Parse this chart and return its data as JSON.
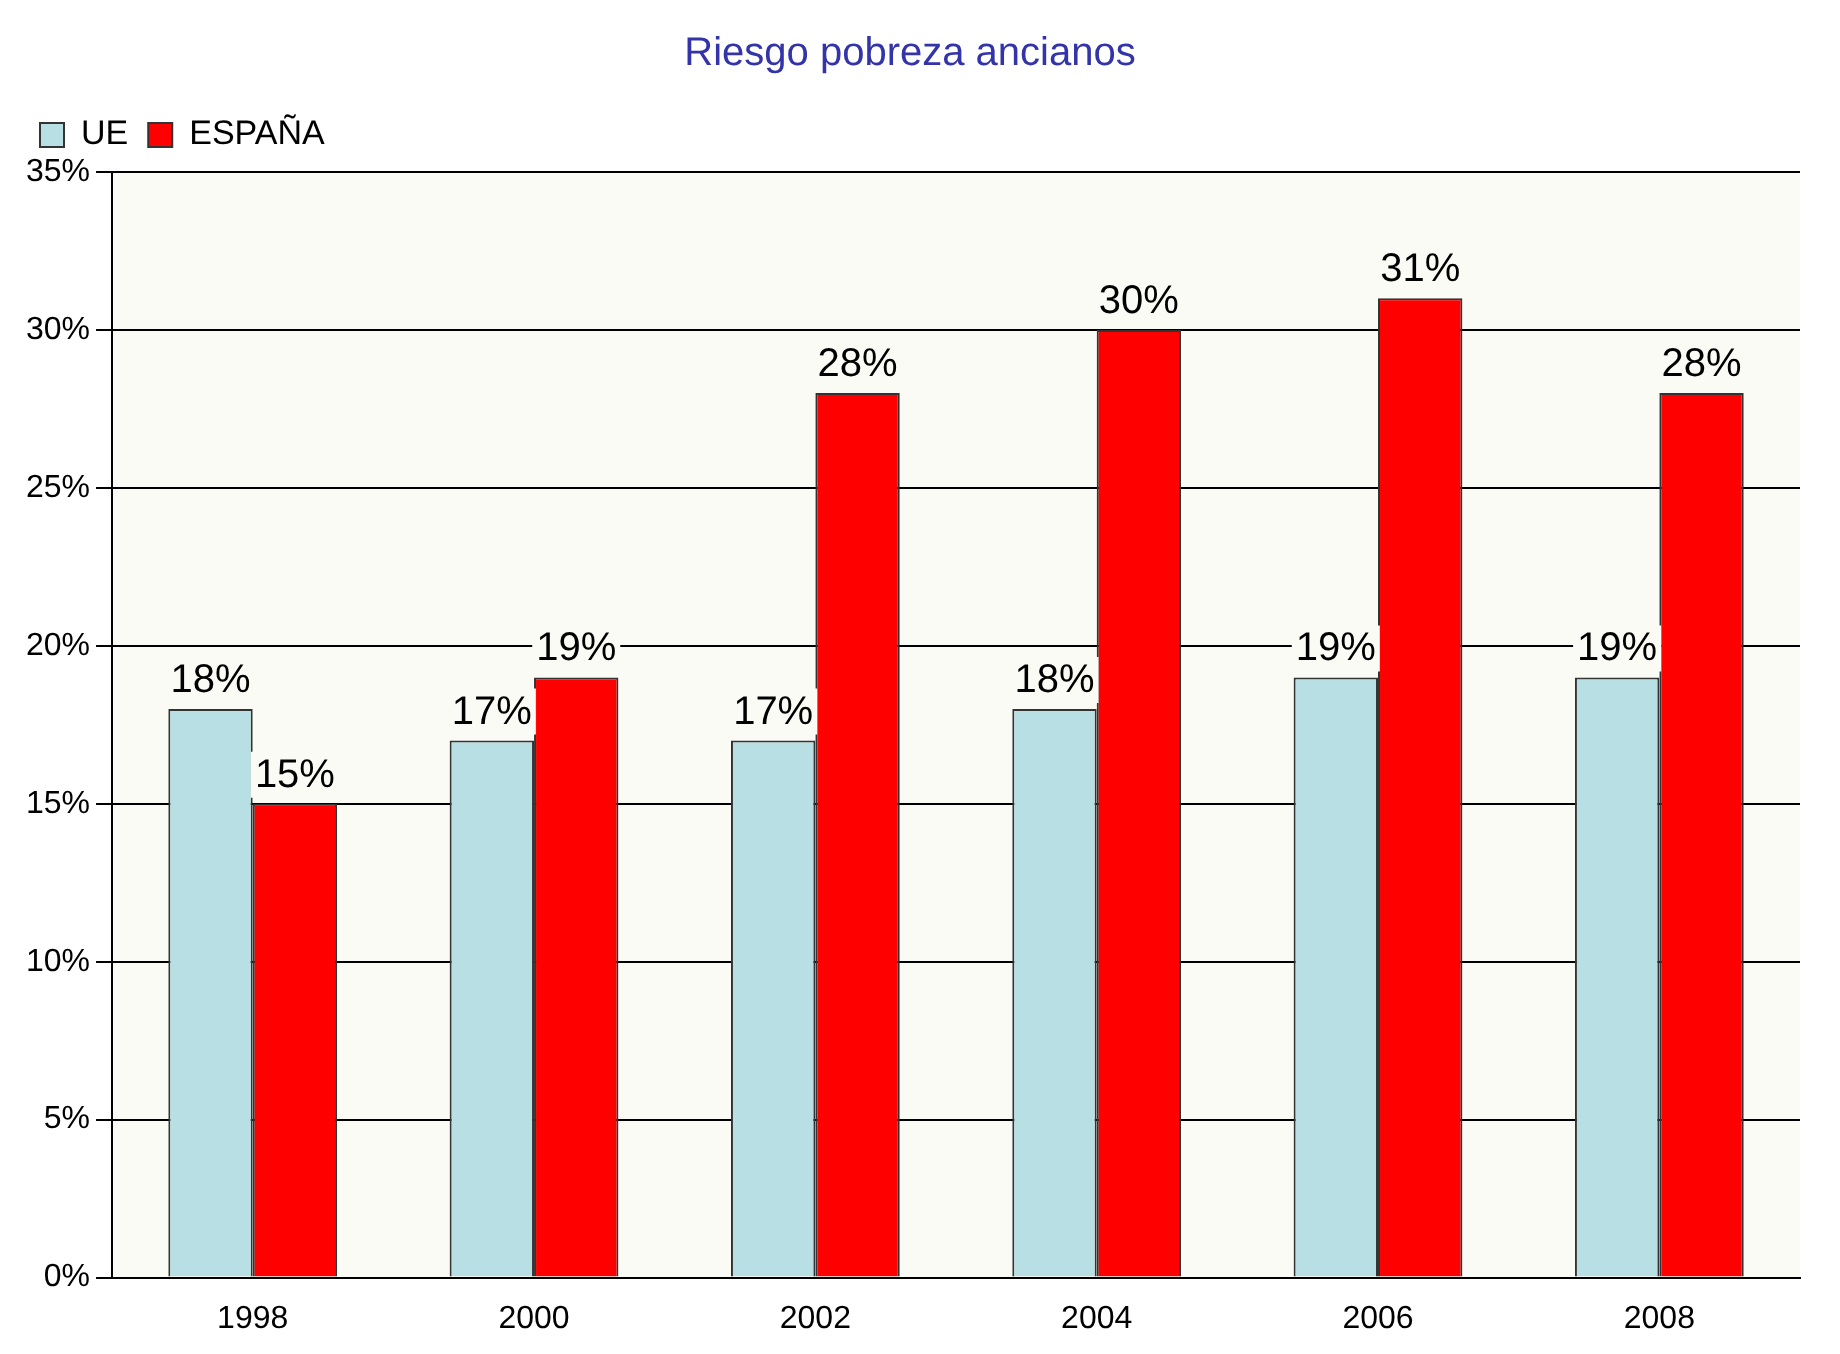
{
  "chart_data": {
    "type": "bar",
    "title": "Riesgo pobreza ancianos",
    "categories": [
      "1998",
      "2000",
      "2002",
      "2004",
      "2006",
      "2008"
    ],
    "series": [
      {
        "name": "UE",
        "color": "#b8dfe3",
        "values": [
          18,
          17,
          17,
          18,
          19,
          19
        ],
        "value_labels": [
          "18%",
          "17%",
          "17%",
          "18%",
          "19%",
          "19%"
        ]
      },
      {
        "name": "ESPAÑA",
        "color": "#ff0000",
        "values": [
          15,
          19,
          28,
          30,
          31,
          28
        ],
        "value_labels": [
          "15%",
          "19%",
          "28%",
          "30%",
          "31%",
          "28%"
        ]
      }
    ],
    "ylim": [
      0,
      35
    ],
    "yticks": [
      {
        "value": 0,
        "label": "0%"
      },
      {
        "value": 5,
        "label": "5%"
      },
      {
        "value": 10,
        "label": "10%"
      },
      {
        "value": 15,
        "label": "15%"
      },
      {
        "value": 20,
        "label": "20%"
      },
      {
        "value": 25,
        "label": "25%"
      },
      {
        "value": 30,
        "label": "30%"
      },
      {
        "value": 35,
        "label": "35%"
      }
    ],
    "grid": "y",
    "legend": "top left"
  }
}
